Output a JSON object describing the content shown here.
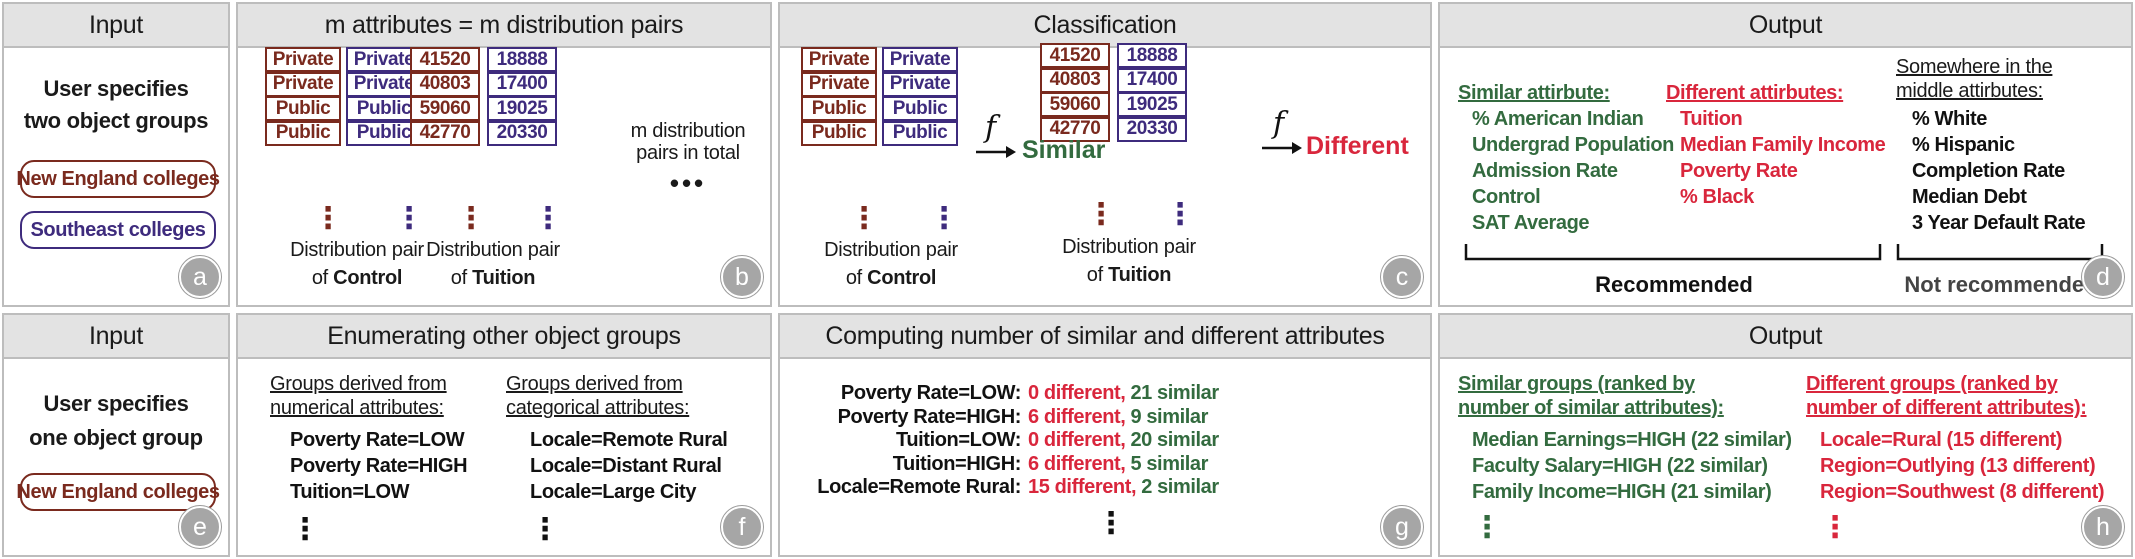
{
  "a": {
    "title": "Input",
    "letter": "a",
    "line1": "User specifies",
    "line2": "two object groups",
    "group1": "New England colleges",
    "group2": "Southeast colleges"
  },
  "b": {
    "title": "m attributes = m distribution pairs",
    "letter": "b",
    "control_left": [
      "Private",
      "Private",
      "Public",
      "Public"
    ],
    "control_right": [
      "Private",
      "Private",
      "Public",
      "Public"
    ],
    "tuition_left": [
      "41520",
      "40803",
      "59060",
      "42770"
    ],
    "tuition_right": [
      "18888",
      "17400",
      "19025",
      "20330"
    ],
    "dist_pair": "Distribution pair",
    "of_word": "of",
    "control_attr": "Control",
    "tuition_attr": "Tuition",
    "total_line1": "m distribution",
    "total_line2": "pairs in total",
    "ellipsis": "•••",
    "vdots": "⋮"
  },
  "c": {
    "title": "Classification",
    "letter": "c",
    "control_left": [
      "Private",
      "Private",
      "Public",
      "Public"
    ],
    "control_right": [
      "Private",
      "Private",
      "Public",
      "Public"
    ],
    "tuition_left": [
      "41520",
      "40803",
      "59060",
      "42770"
    ],
    "tuition_right": [
      "18888",
      "17400",
      "19025",
      "20330"
    ],
    "f_symbol": "f",
    "similar_label": "Similar",
    "different_label": "Different",
    "dist_pair": "Distribution pair",
    "of_word": "of",
    "control_attr": "Control",
    "tuition_attr": "Tuition",
    "vdots": "⋮"
  },
  "d": {
    "title": "Output",
    "letter": "d",
    "similar_head": "Similar attirbute:",
    "similar_items": [
      "% American Indian",
      "Undergrad Population",
      "Admission Rate",
      "Control",
      "SAT Average"
    ],
    "different_head": "Different attirbutes:",
    "different_items": [
      "Tuition",
      "Median Family Income",
      "Poverty Rate",
      "% Black"
    ],
    "middle_head1": "Somewhere in the",
    "middle_head2": "middle attirbutes:",
    "middle_items": [
      "% White",
      "% Hispanic",
      "Completion Rate",
      "Median Debt",
      "3 Year Default Rate"
    ],
    "recommended": "Recommended",
    "not_recommended": "Not recommended"
  },
  "e": {
    "title": "Input",
    "letter": "e",
    "line1": "User specifies",
    "line2": "one object group",
    "group1": "New England colleges"
  },
  "f": {
    "title": "Enumerating other object groups",
    "letter": "f",
    "num_head1": "Groups derived from",
    "num_head2": "numerical attributes:",
    "num_items": [
      "Poverty Rate=LOW",
      "Poverty Rate=HIGH",
      "Tuition=LOW"
    ],
    "cat_head1": "Groups derived from",
    "cat_head2": "categorical attributes:",
    "cat_items": [
      "Locale=Remote Rural",
      "Locale=Distant Rural",
      "Locale=Large City"
    ],
    "vdots": "⋮"
  },
  "g": {
    "title": "Computing number of similar and different attributes",
    "letter": "g",
    "rows": [
      {
        "label": "Poverty Rate=LOW:",
        "diff": "0 different",
        "sep": ",",
        "sim": "21 similar"
      },
      {
        "label": "Poverty Rate=HIGH:",
        "diff": "6 different",
        "sep": ",",
        "sim": "9 similar"
      },
      {
        "label": "Tuition=LOW:",
        "diff": "0 different",
        "sep": ",",
        "sim": "20 similar"
      },
      {
        "label": "Tuition=HIGH:",
        "diff": "6 different",
        "sep": ",",
        "sim": "5 similar"
      },
      {
        "label": "Locale=Remote Rural:",
        "diff": "15 different",
        "sep": ",",
        "sim": "2 similar"
      }
    ],
    "vdots": "⋮"
  },
  "h": {
    "title": "Output",
    "letter": "h",
    "sim_head1": "Similar groups (ranked by",
    "sim_head2": "number of similar attributes):",
    "sim_items": [
      "Median Earnings=HIGH (22 similar)",
      "Faculty Salary=HIGH (22 similar)",
      "Family Income=HIGH (21 similar)"
    ],
    "diff_head1": "Different groups (ranked by",
    "diff_head2": "number of different attributes):",
    "diff_items": [
      "Locale=Rural (15 different)",
      "Region=Outlying (13 different)",
      "Region=Southwest (8 different)"
    ],
    "vdots": "⋮"
  },
  "colors": {
    "green": "#336b3f",
    "red": "#d9263c",
    "brown": "#7a2a1e",
    "purple": "#3e2b7d",
    "header_gray": "#e3e3e3",
    "badge_gray": "#a6a6a6"
  }
}
